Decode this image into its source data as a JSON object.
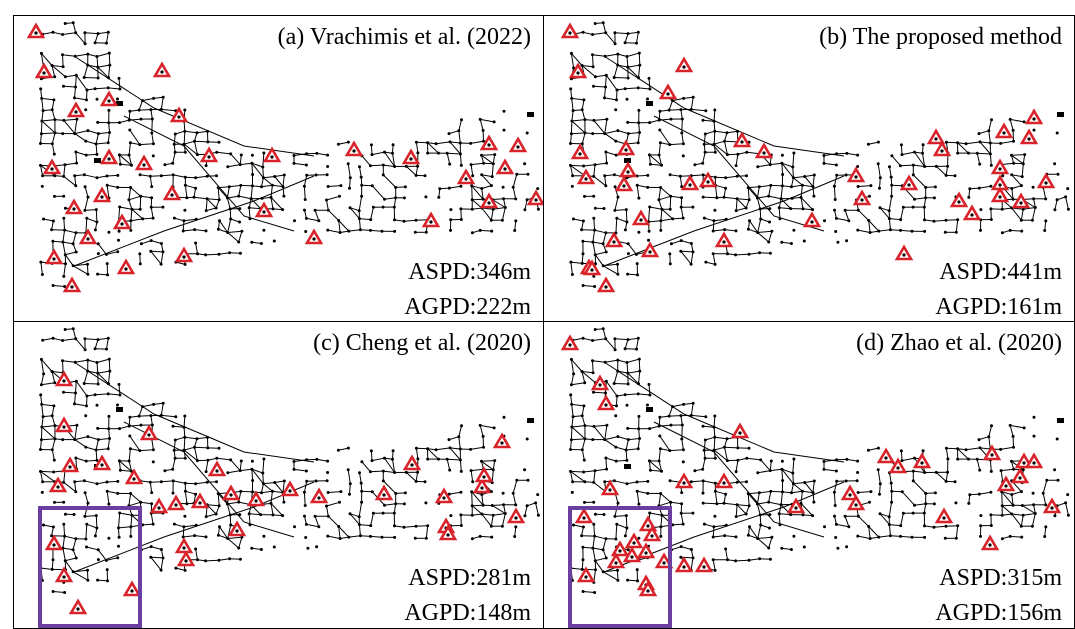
{
  "figure": {
    "panels": [
      {
        "id": "a",
        "title": "(a) Vrachimis et al. (2022)",
        "aspd_label": "ASPD:346m",
        "agpd_label": "AGPD:222m",
        "highlight_box": false
      },
      {
        "id": "b",
        "title": "(b) The proposed method",
        "aspd_label": "ASPD:441m",
        "agpd_label": "AGPD:161m",
        "highlight_box": false
      },
      {
        "id": "c",
        "title": "(c) Cheng et al. (2020)",
        "aspd_label": "ASPD:281m",
        "agpd_label": "AGPD:148m",
        "highlight_box": true
      },
      {
        "id": "d",
        "title": "(d) Zhao et al. (2020)",
        "aspd_label": "ASPD:315m",
        "agpd_label": "AGPD:156m",
        "highlight_box": true
      }
    ],
    "colors": {
      "network": "#000000",
      "sensor_marker": "#d8232a",
      "highlight_box": "#6b3fa0"
    },
    "marker_icon": "sensor-triangle-icon"
  }
}
